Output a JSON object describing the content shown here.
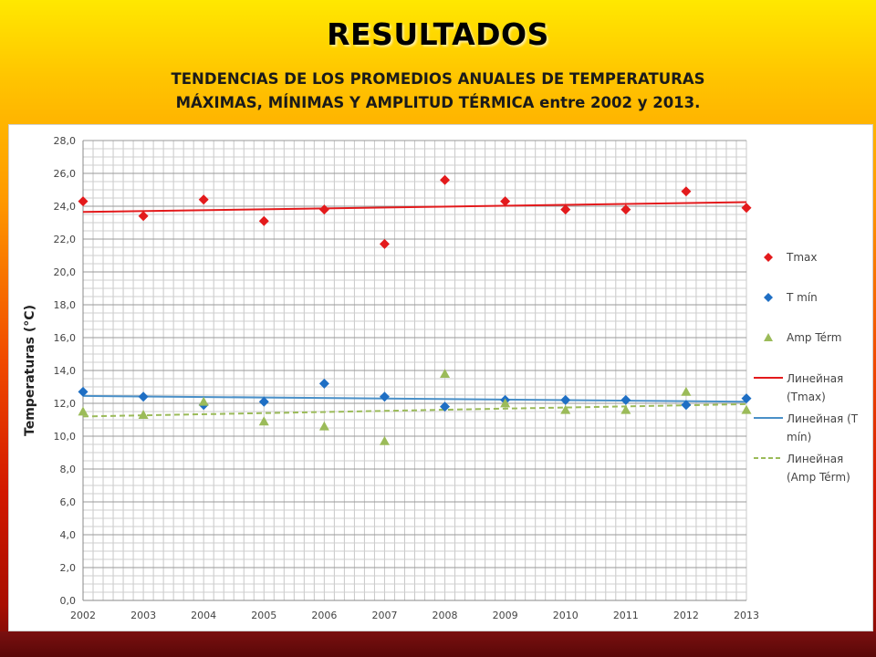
{
  "page": {
    "title": "RESULTADOS",
    "subtitle_line1": "TENDENCIAS DE LOS PROMEDIOS ANUALES DE TEMPERATURAS",
    "subtitle_line2": "MÁXIMAS, MÍNIMAS Y AMPLITUD TÉRMICA entre 2002 y 2013."
  },
  "chart_data": {
    "type": "scatter",
    "title": "",
    "xlabel": "",
    "ylabel": "Temperaturas (°C)",
    "x": [
      2002,
      2003,
      2004,
      2005,
      2006,
      2007,
      2008,
      2009,
      2010,
      2011,
      2012,
      2013
    ],
    "ylim": [
      0,
      28
    ],
    "yticks": [
      "0,0",
      "2,0",
      "4,0",
      "6,0",
      "8,0",
      "10,0",
      "12,0",
      "14,0",
      "16,0",
      "18,0",
      "20,0",
      "22,0",
      "24,0",
      "26,0",
      "28,0"
    ],
    "grid": true,
    "legend_position": "right",
    "series": [
      {
        "name": "Tmax",
        "marker": "diamond",
        "color": "#e31a1c",
        "values": [
          24.3,
          23.4,
          24.4,
          23.1,
          23.8,
          21.7,
          25.6,
          24.3,
          23.8,
          23.8,
          24.9,
          23.9
        ]
      },
      {
        "name": "T mín",
        "marker": "diamond",
        "color": "#1f6fc4",
        "values": [
          12.7,
          12.4,
          11.9,
          12.1,
          13.2,
          12.4,
          11.8,
          12.2,
          12.2,
          12.2,
          11.9,
          12.3
        ]
      },
      {
        "name": "Amp Térm",
        "marker": "triangle",
        "color": "#9bbb59",
        "values": [
          11.5,
          11.3,
          12.1,
          10.9,
          10.6,
          9.7,
          13.8,
          12.0,
          11.6,
          11.6,
          12.7,
          11.6
        ]
      }
    ],
    "trendlines": [
      {
        "name": "Линейная (Tmax)",
        "color": "#e31a1c",
        "dash": "solid",
        "start": [
          2002,
          23.65
        ],
        "end": [
          2013,
          24.25
        ]
      },
      {
        "name": "Линейная (T mín)",
        "color": "#4a90c8",
        "dash": "solid",
        "start": [
          2002,
          12.45
        ],
        "end": [
          2013,
          12.1
        ]
      },
      {
        "name": "Линейная (Amp Térm)",
        "color": "#9bbb59",
        "dash": "dashed",
        "start": [
          2002,
          11.2
        ],
        "end": [
          2013,
          11.95
        ]
      }
    ],
    "legend": [
      {
        "label": "Tmax",
        "kind": "diamond",
        "color": "#e31a1c"
      },
      {
        "label": "T mín",
        "kind": "diamond",
        "color": "#1f6fc4"
      },
      {
        "label": "Amp Térm",
        "kind": "triangle",
        "color": "#9bbb59"
      },
      {
        "label_lines": [
          "Линейная",
          "(Tmax)"
        ],
        "kind": "line",
        "color": "#e31a1c"
      },
      {
        "label_lines": [
          "Линейная (T",
          "mín)"
        ],
        "kind": "line",
        "color": "#4a90c8"
      },
      {
        "label_lines": [
          "Линейная",
          "(Amp Térm)"
        ],
        "kind": "dashed",
        "color": "#9bbb59"
      }
    ]
  }
}
